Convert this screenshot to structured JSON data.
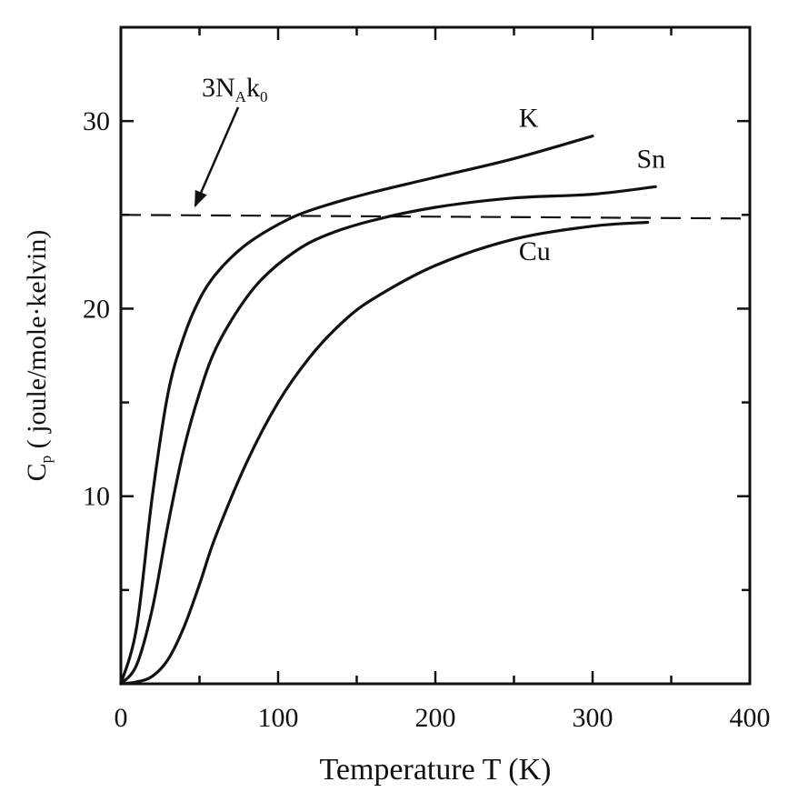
{
  "chart_data": {
    "type": "line",
    "title": "",
    "xlabel": "Temperature T (K)",
    "ylabel": "C_p ( joule/mole·kelvin)",
    "ylabel_main": "C",
    "ylabel_sub": "p",
    "ylabel_rest": " ( joule/mole·kelvin)",
    "xlim": [
      0,
      400
    ],
    "ylim": [
      0,
      35
    ],
    "x_ticks": [
      0,
      100,
      200,
      300,
      400
    ],
    "x_tick_labels": [
      "0",
      "100",
      "200",
      "300",
      "400"
    ],
    "x_minor_ticks": [
      50,
      150,
      250,
      350
    ],
    "y_ticks": [
      10,
      20,
      30
    ],
    "y_tick_labels": [
      "10",
      "20",
      "30"
    ],
    "y_minor_ticks": [
      5,
      15,
      25
    ],
    "grid": false,
    "reference_line": {
      "value": 25,
      "style": "dashed",
      "label": "3N_Ak_0",
      "label_parts": {
        "main": "3N",
        "sub1": "A",
        "mid": "k",
        "sub2": "0"
      },
      "arrow_to_x": 45
    },
    "series": [
      {
        "name": "K",
        "x": [
          0,
          10,
          20,
          30,
          40,
          50,
          60,
          75,
          90,
          110,
          130,
          160,
          200,
          250,
          300
        ],
        "y": [
          0,
          3,
          10,
          15.5,
          18.5,
          20.5,
          21.8,
          23.1,
          24.0,
          24.9,
          25.5,
          26.2,
          27.0,
          28.0,
          29.2
        ]
      },
      {
        "name": "Sn",
        "x": [
          0,
          10,
          20,
          30,
          40,
          50,
          60,
          75,
          90,
          110,
          130,
          160,
          200,
          250,
          300,
          340
        ],
        "y": [
          0,
          1,
          4,
          8.5,
          12.5,
          15.5,
          17.8,
          20.0,
          21.6,
          23.0,
          23.9,
          24.7,
          25.4,
          25.9,
          26.1,
          26.5
        ]
      },
      {
        "name": "Cu",
        "x": [
          0,
          10,
          20,
          30,
          40,
          50,
          60,
          80,
          100,
          120,
          140,
          160,
          200,
          250,
          300,
          335
        ],
        "y": [
          0,
          0.1,
          0.4,
          1.3,
          3.0,
          5.3,
          7.8,
          11.8,
          15.0,
          17.4,
          19.2,
          20.5,
          22.3,
          23.7,
          24.4,
          24.6
        ]
      }
    ],
    "series_labels": [
      {
        "name": "K",
        "x": 253,
        "y": 29.7
      },
      {
        "name": "Sn",
        "x": 328,
        "y": 27.5
      },
      {
        "name": "Cu",
        "x": 253,
        "y": 22.6
      }
    ]
  }
}
